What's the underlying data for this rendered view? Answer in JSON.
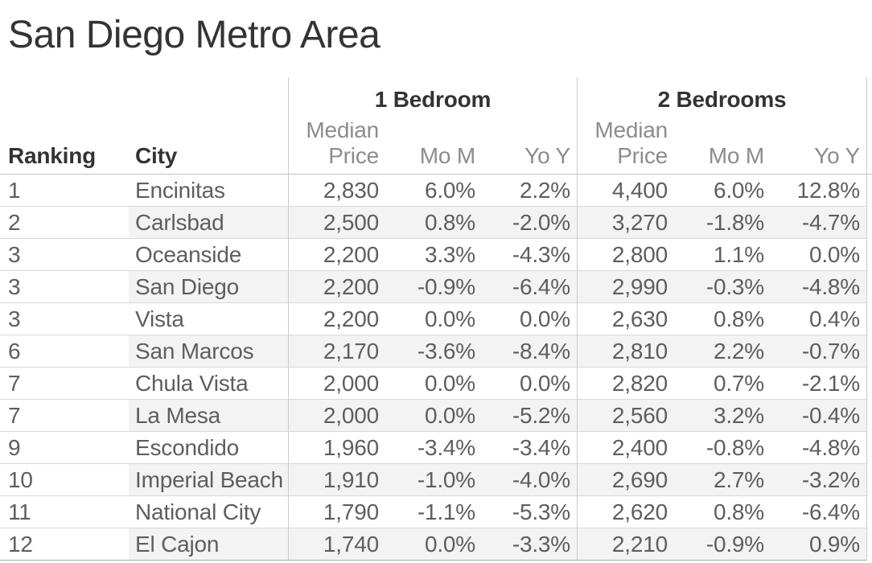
{
  "title": "San Diego Metro Area",
  "table": {
    "row_headers": {
      "ranking": "Ranking",
      "city": "City"
    },
    "groups": [
      {
        "label": "1 Bedroom"
      },
      {
        "label": "2 Bedrooms"
      }
    ],
    "measure_headers": {
      "median_line1": "Median",
      "median_line2": "Price",
      "mom": "Mo M",
      "yoy": "Yo Y"
    }
  },
  "colors": {
    "background": "#ffffff",
    "title_text": "#343434",
    "header_text": "#333333",
    "measure_header_text": "#8c8c8c",
    "data_text": "#5e5e5e",
    "row_band": "#f3f3f3",
    "row_border": "#d8d8d8",
    "column_divider": "#cbcbcb",
    "header_underline": "#c2c2c2",
    "table_bottom_border": "#a8a8a8"
  },
  "chart_data": {
    "type": "table",
    "title": "San Diego Metro Area",
    "column_groups": [
      "1 Bedroom",
      "2 Bedrooms"
    ],
    "columns": [
      "Ranking",
      "City",
      "1 Bedroom Median Price",
      "1 Bedroom Mo M",
      "1 Bedroom Yo Y",
      "2 Bedrooms Median Price",
      "2 Bedrooms Mo M",
      "2 Bedrooms Yo Y"
    ],
    "rows": [
      [
        "1",
        "Encinitas",
        "2,830",
        "6.0%",
        "2.2%",
        "4,400",
        "6.0%",
        "12.8%"
      ],
      [
        "2",
        "Carlsbad",
        "2,500",
        "0.8%",
        "-2.0%",
        "3,270",
        "-1.8%",
        "-4.7%"
      ],
      [
        "3",
        "Oceanside",
        "2,200",
        "3.3%",
        "-4.3%",
        "2,800",
        "1.1%",
        "0.0%"
      ],
      [
        "3",
        "San Diego",
        "2,200",
        "-0.9%",
        "-6.4%",
        "2,990",
        "-0.3%",
        "-4.8%"
      ],
      [
        "3",
        "Vista",
        "2,200",
        "0.0%",
        "0.0%",
        "2,630",
        "0.8%",
        "0.4%"
      ],
      [
        "6",
        "San Marcos",
        "2,170",
        "-3.6%",
        "-8.4%",
        "2,810",
        "2.2%",
        "-0.7%"
      ],
      [
        "7",
        "Chula Vista",
        "2,000",
        "0.0%",
        "0.0%",
        "2,820",
        "0.7%",
        "-2.1%"
      ],
      [
        "7",
        "La Mesa",
        "2,000",
        "0.0%",
        "-5.2%",
        "2,560",
        "3.2%",
        "-0.4%"
      ],
      [
        "9",
        "Escondido",
        "1,960",
        "-3.4%",
        "-3.4%",
        "2,400",
        "-0.8%",
        "-4.8%"
      ],
      [
        "10",
        "Imperial Beach",
        "1,910",
        "-1.0%",
        "-4.0%",
        "2,690",
        "2.7%",
        "-3.2%"
      ],
      [
        "11",
        "National City",
        "1,790",
        "-1.1%",
        "-5.3%",
        "2,620",
        "0.8%",
        "-6.4%"
      ],
      [
        "12",
        "El Cajon",
        "1,740",
        "0.0%",
        "-3.3%",
        "2,210",
        "-0.9%",
        "0.9%"
      ]
    ]
  }
}
